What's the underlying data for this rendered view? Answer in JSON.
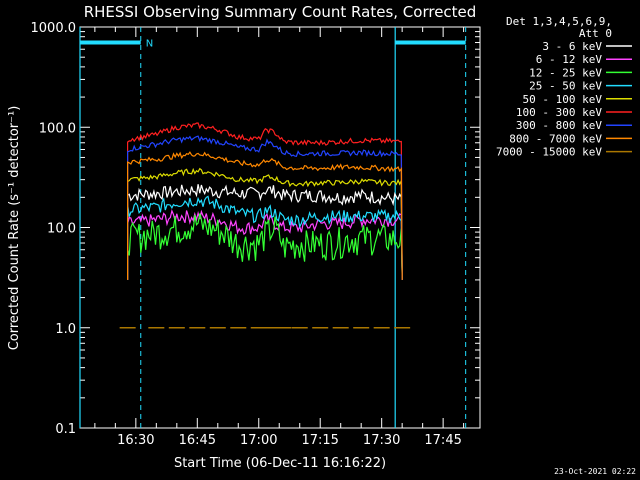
{
  "chart_data": {
    "type": "line",
    "title": "RHESSI Observing Summary Count Rates, Corrected",
    "xlabel": "Start Time (06-Dec-11 16:16:22)",
    "ylabel": "Corrected Count Rate (s⁻¹ detector⁻¹)",
    "y_scale": "log",
    "ylim": [
      0.1,
      1000
    ],
    "xlim": [
      "16:16:22",
      "17:54:00"
    ],
    "x_tick_labels": [
      "16:30",
      "16:45",
      "17:00",
      "17:15",
      "17:30",
      "17:45"
    ],
    "x_ticks": [
      30,
      45,
      60,
      75,
      90,
      105
    ],
    "y_tick_labels": [
      "0.1",
      "1.0",
      "10.0",
      "100.0",
      "1000.0"
    ],
    "y_ticks": [
      0.1,
      1,
      10,
      100,
      1000
    ],
    "grid": false,
    "legend_position": "right",
    "legend_header": [
      "Det 1,3,4,5,6,9,",
      "Att 0"
    ],
    "footer_date": "23-Oct-2021 02:22",
    "night_marker_label": "N",
    "night_bars": [
      {
        "start": 16.37,
        "end": 31.2,
        "solid_at": 16.37,
        "dashed_at": 31.2
      },
      {
        "start": 93.3,
        "end": 110.5,
        "solid_at": 93.3,
        "dashed_at": 110.5
      }
    ],
    "series": [
      {
        "name": "3 - 6 keV",
        "color": "#ffffff",
        "x": [
          28,
          35,
          40,
          45,
          50,
          55,
          60,
          62,
          64,
          66,
          70,
          75,
          80,
          85,
          90,
          95
        ],
        "y": [
          21,
          22,
          23,
          24,
          23,
          22,
          22,
          24,
          23,
          21,
          21,
          21,
          20,
          21,
          20,
          19
        ]
      },
      {
        "name": "6 - 12 keV",
        "color": "#ff44ff",
        "x": [
          28,
          35,
          40,
          45,
          50,
          55,
          60,
          62,
          64,
          66,
          70,
          75,
          80,
          85,
          90,
          95
        ],
        "y": [
          11,
          12,
          13,
          13,
          12,
          10,
          10,
          12,
          11,
          10,
          10,
          11,
          11,
          12,
          12,
          12
        ]
      },
      {
        "name": "12 - 25 keV",
        "color": "#33ff33",
        "x": [
          28,
          35,
          40,
          45,
          50,
          55,
          60,
          62,
          64,
          66,
          70,
          75,
          80,
          85,
          90,
          95
        ],
        "y": [
          8,
          9,
          10,
          11,
          9.5,
          7,
          7,
          9,
          10,
          6.5,
          7,
          7,
          7.5,
          8,
          8,
          7.5
        ]
      },
      {
        "name": "25 - 50 keV",
        "color": "#22ddff",
        "x": [
          28,
          35,
          40,
          45,
          50,
          55,
          60,
          62,
          64,
          66,
          70,
          75,
          80,
          85,
          90,
          95
        ],
        "y": [
          15,
          16,
          18,
          19,
          17,
          14,
          13,
          15,
          14,
          12,
          12,
          13,
          13,
          13,
          13,
          13
        ]
      },
      {
        "name": "50 - 100 keV",
        "color": "#dddd00",
        "x": [
          28,
          35,
          40,
          45,
          50,
          55,
          60,
          62,
          64,
          66,
          70,
          75,
          80,
          85,
          90,
          95
        ],
        "y": [
          30,
          32,
          35,
          37,
          34,
          30,
          29,
          32,
          31,
          28,
          27,
          28,
          28,
          29,
          28,
          28
        ]
      },
      {
        "name": "100 - 300 keV",
        "color": "#ff2020",
        "x": [
          28,
          35,
          40,
          45,
          50,
          55,
          60,
          62,
          64,
          66,
          70,
          75,
          80,
          85,
          90,
          95
        ],
        "y": [
          75,
          85,
          100,
          105,
          95,
          80,
          76,
          95,
          88,
          72,
          70,
          70,
          72,
          74,
          73,
          72
        ]
      },
      {
        "name": "300 - 800 keV",
        "color": "#2244ff",
        "x": [
          28,
          35,
          40,
          45,
          50,
          55,
          60,
          62,
          64,
          66,
          70,
          75,
          80,
          85,
          90,
          95
        ],
        "y": [
          60,
          68,
          75,
          78,
          72,
          63,
          60,
          72,
          66,
          56,
          54,
          55,
          55,
          56,
          55,
          54
        ]
      },
      {
        "name": "800 - 7000 keV",
        "color": "#ff8800",
        "x": [
          28,
          35,
          40,
          45,
          50,
          55,
          60,
          62,
          64,
          66,
          70,
          75,
          80,
          85,
          90,
          95
        ],
        "y": [
          45,
          48,
          52,
          55,
          50,
          44,
          42,
          48,
          45,
          40,
          39,
          39,
          40,
          40,
          39,
          38
        ]
      },
      {
        "name": "7000 - 15000 keV",
        "color": "#aa7700",
        "x": [
          28,
          35,
          40,
          45,
          50,
          55,
          60,
          62,
          64,
          66,
          70,
          75,
          80,
          85,
          90,
          95
        ],
        "y": [
          1,
          1,
          1,
          1,
          1,
          1,
          1,
          1,
          1,
          1,
          1,
          1,
          1,
          1,
          1,
          1
        ]
      }
    ]
  }
}
